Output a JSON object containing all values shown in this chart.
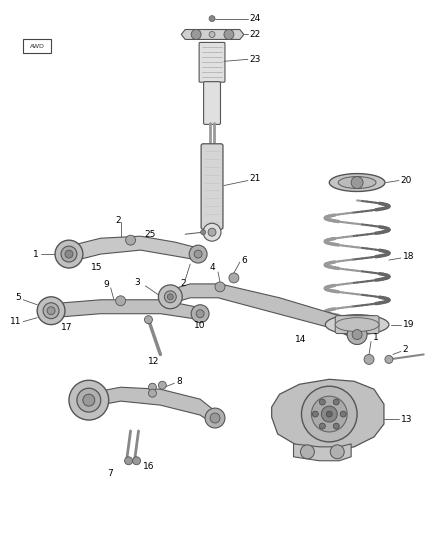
{
  "background_color": "#ffffff",
  "fig_width": 4.38,
  "fig_height": 5.33,
  "dpi": 100,
  "line_color": "#444444",
  "label_color": "#000000",
  "font_size": 6.5,
  "parts_color": "#b0b0b0",
  "dark_color": "#666666",
  "spring_color": "#888888"
}
